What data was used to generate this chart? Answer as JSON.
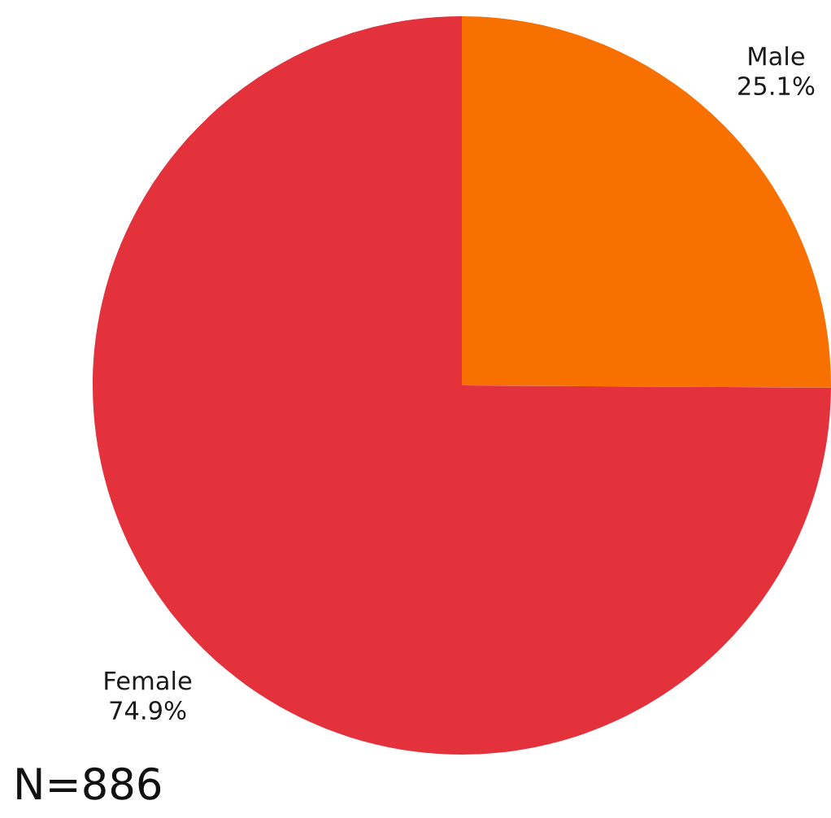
{
  "chart_data": {
    "type": "pie",
    "categories": [
      "Male",
      "Female"
    ],
    "values": [
      25.1,
      74.9
    ],
    "colors": [
      "#f77000",
      "#e3323c"
    ],
    "value_labels": [
      "25.1%",
      "74.9%"
    ],
    "annotations": [
      "N=886"
    ]
  }
}
